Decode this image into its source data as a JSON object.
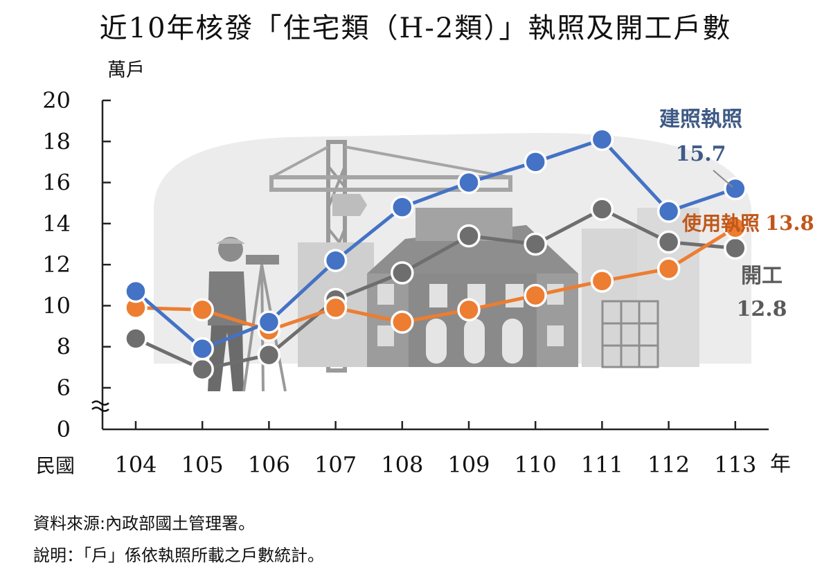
{
  "title": "近10年核發「住宅類（H-2類）」執照及開工戶數",
  "chart_data": {
    "type": "line",
    "ylabel": "萬戶",
    "xlabel_prefix": "民國",
    "xlabel_suffix": "年",
    "categories": [
      "104",
      "105",
      "106",
      "107",
      "108",
      "109",
      "110",
      "111",
      "112",
      "113"
    ],
    "yticks": [
      "0",
      "6",
      "8",
      "10",
      "12",
      "14",
      "16",
      "18",
      "20"
    ],
    "ylim": [
      6,
      20
    ],
    "axis_break": true,
    "grid": false,
    "series": [
      {
        "name": "建照執照",
        "color": "#4472C4",
        "values": [
          10.7,
          7.9,
          9.2,
          12.2,
          14.8,
          16.0,
          17.0,
          18.1,
          14.6,
          15.7
        ],
        "end_label": "15.7",
        "label_color": "#3F5A86"
      },
      {
        "name": "使用執照",
        "color": "#ED7D31",
        "values": [
          9.9,
          9.8,
          8.8,
          9.9,
          9.2,
          9.8,
          10.5,
          11.2,
          11.8,
          13.8
        ],
        "end_label": "13.8",
        "label_color": "#C0571A"
      },
      {
        "name": "開工",
        "color": "#6E6E6E",
        "values": [
          8.4,
          6.9,
          7.6,
          10.3,
          11.6,
          13.4,
          13.0,
          14.7,
          13.1,
          12.8
        ],
        "end_label": "12.8",
        "label_color": "#5A5A5A"
      }
    ]
  },
  "footnotes": {
    "source": "資料來源:內政部國土管理署。",
    "note": "說明：「戶」係依執照所載之戶數統計。"
  }
}
